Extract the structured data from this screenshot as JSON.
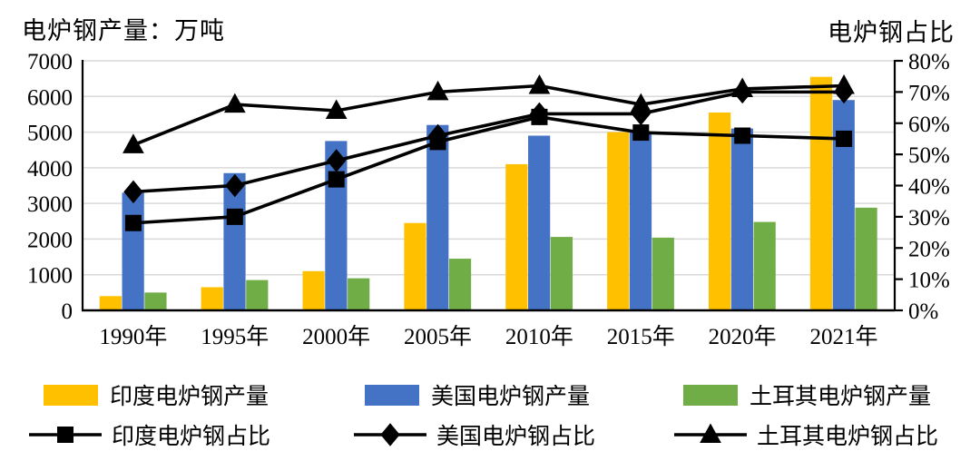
{
  "titles": {
    "left": "电炉钢产量：万吨",
    "right": "电炉钢占比"
  },
  "chart_data": {
    "type": "combo-bar-line",
    "categories": [
      "1990年",
      "1995年",
      "2000年",
      "2005年",
      "2010年",
      "2015年",
      "2020年",
      "2021年"
    ],
    "bar_series": [
      {
        "name": "印度电炉钢产量",
        "color": "#FFC000",
        "axis": "left",
        "values": [
          400,
          650,
          1100,
          2450,
          4100,
          5000,
          5550,
          6550
        ]
      },
      {
        "name": "美国电炉钢产量",
        "color": "#4472C4",
        "axis": "left",
        "values": [
          3300,
          3850,
          4750,
          5200,
          4900,
          5000,
          5100,
          5900
        ]
      },
      {
        "name": "土耳其电炉钢产量",
        "color": "#70AD47",
        "axis": "left",
        "values": [
          500,
          850,
          900,
          1450,
          2060,
          2040,
          2480,
          2880
        ]
      }
    ],
    "line_series": [
      {
        "name": "印度电炉钢占比",
        "marker": "square",
        "color": "#000000",
        "axis": "right",
        "values": [
          28,
          30,
          42,
          54,
          62,
          57,
          56,
          55
        ]
      },
      {
        "name": "美国电炉钢占比",
        "marker": "diamond",
        "color": "#000000",
        "axis": "right",
        "values": [
          38,
          40,
          48,
          56,
          63,
          63,
          70,
          70
        ]
      },
      {
        "name": "土耳其电炉钢占比",
        "marker": "triangle",
        "color": "#000000",
        "axis": "right",
        "values": [
          53,
          66,
          64,
          70,
          72,
          66,
          71,
          72
        ]
      }
    ],
    "left_axis": {
      "label": "电炉钢产量：万吨",
      "min": 0,
      "max": 7000,
      "step": 1000,
      "ticks": [
        "0",
        "1000",
        "2000",
        "3000",
        "4000",
        "5000",
        "6000",
        "7000"
      ]
    },
    "right_axis": {
      "label": "电炉钢占比",
      "min": 0,
      "max": 80,
      "step": 10,
      "unit": "%",
      "ticks": [
        "0%",
        "10%",
        "20%",
        "30%",
        "40%",
        "50%",
        "60%",
        "70%",
        "80%"
      ]
    },
    "grid": {
      "on": true,
      "color": "#D9D9D9"
    },
    "axis_color": "#000000",
    "legend_position": "bottom"
  }
}
